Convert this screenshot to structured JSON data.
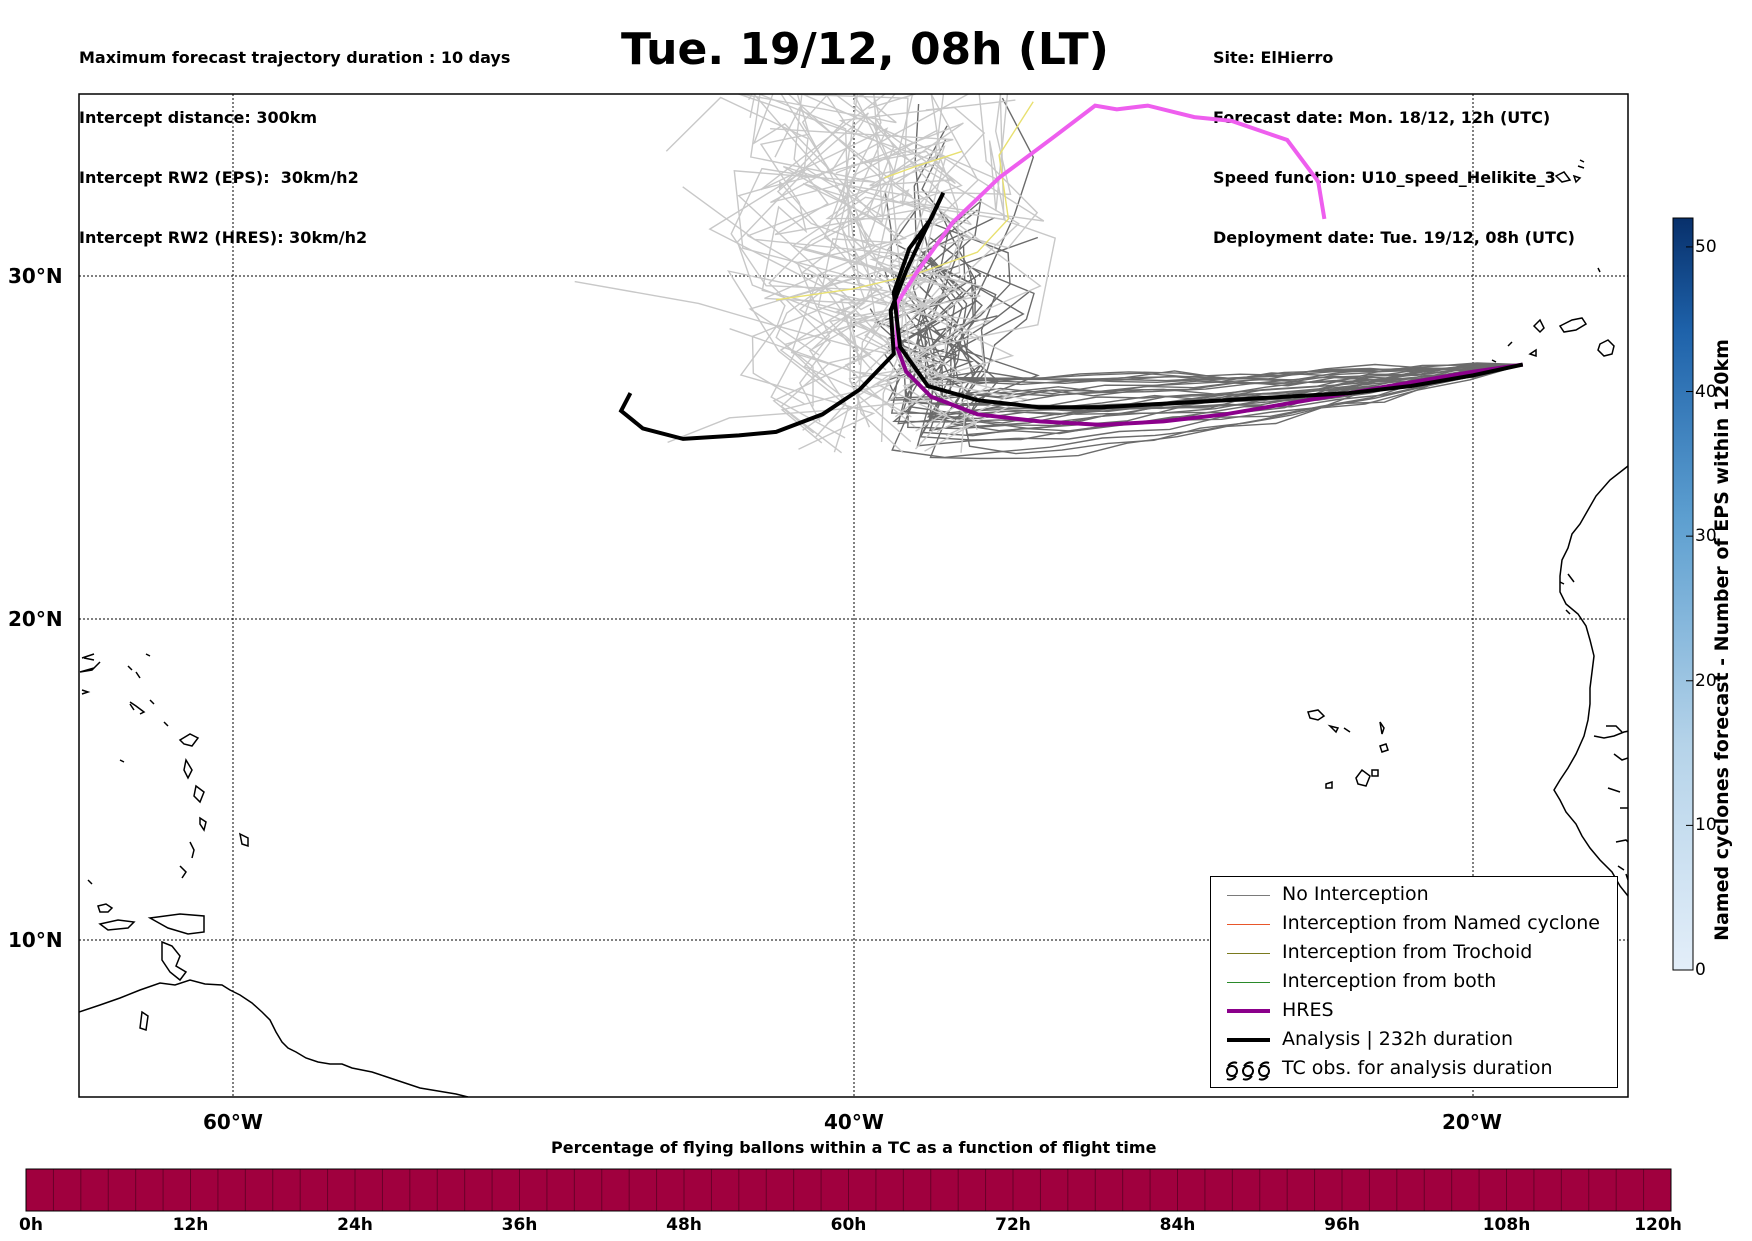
{
  "header": {
    "left_lines": [
      "Maximum forecast trajectory duration : 10 days",
      "Intercept distance: 300km",
      "Intercept RW2 (EPS):  30km/h2",
      "Intercept RW2 (HRES): 30km/h2"
    ],
    "title": "Tue. 19/12, 08h (LT)",
    "right_lines": [
      "Site: ElHierro",
      "Forecast date: Mon. 18/12, 12h (UTC)",
      "Speed function: U10_speed_Helikite_3",
      "Deployment date: Tue. 19/12, 08h (UTC)"
    ]
  },
  "map": {
    "lat_labels": [
      "30°N",
      "20°N",
      "10°N"
    ],
    "lon_labels": [
      "60°W",
      "40°W",
      "20°W"
    ],
    "lon_range": [
      -65,
      -15
    ],
    "lat_range": [
      5.5,
      34.8
    ],
    "gridline_lats": [
      30,
      20,
      10
    ],
    "gridline_lons": [
      -60,
      -40,
      -20
    ]
  },
  "legend": {
    "items": [
      {
        "label": "No Interception",
        "color": "#7a7a7a",
        "kind": "thin"
      },
      {
        "label": "Interception from Named cyclone",
        "color": "#e8562a",
        "kind": "thin"
      },
      {
        "label": "Interception from Trochoid",
        "color": "#7a7a1e",
        "kind": "thin"
      },
      {
        "label": "Interception from both",
        "color": "#2a8a2a",
        "kind": "thin"
      },
      {
        "label": "HRES",
        "color": "#8b008b",
        "kind": "thick"
      },
      {
        "label": "Analysis | 232h duration",
        "color": "#000000",
        "kind": "thick"
      },
      {
        "label": "TC obs. for analysis duration",
        "color": "#000000",
        "kind": "symbol"
      }
    ]
  },
  "colorbar": {
    "title": "Named cyclones forecast - Number of EPS within 120km",
    "ticks": [
      "0",
      "10",
      "20",
      "30",
      "40",
      "50"
    ],
    "max": 52,
    "colors": [
      "#e3eef9",
      "#08306b"
    ]
  },
  "timebar": {
    "title": "Percentage of flying ballons within a TC as a function of flight time",
    "ticks": [
      "0h",
      "12h",
      "24h",
      "36h",
      "48h",
      "60h",
      "72h",
      "84h",
      "96h",
      "108h",
      "120h"
    ],
    "color": "#a0003e"
  },
  "tracks": {
    "hres": {
      "color": "#8b008b",
      "points": [
        [
          -18.4,
          27.5
        ],
        [
          -20,
          27.3
        ],
        [
          -22,
          27
        ],
        [
          -24,
          26.7
        ],
        [
          -26,
          26.4
        ],
        [
          -28,
          26.1
        ],
        [
          -30,
          25.9
        ],
        [
          -32,
          25.8
        ],
        [
          -34,
          25.9
        ],
        [
          -36,
          26.1
        ],
        [
          -37.5,
          26.6
        ],
        [
          -38.3,
          27.3
        ],
        [
          -38.6,
          28
        ]
      ]
    },
    "hres_magenta": {
      "color": "#ee5eee",
      "points": [
        [
          -38.6,
          28
        ],
        [
          -38.6,
          29.2
        ],
        [
          -38,
          30
        ],
        [
          -36.8,
          31.4
        ],
        [
          -35.3,
          32.6
        ],
        [
          -33.5,
          33.7
        ],
        [
          -32.2,
          34.5
        ],
        [
          -31.5,
          34.4
        ],
        [
          -30.5,
          34.5
        ],
        [
          -29,
          34.2
        ],
        [
          -27.8,
          34.1
        ],
        [
          -26,
          33.6
        ],
        [
          -25,
          32.5
        ],
        [
          -24.8,
          31.5
        ]
      ]
    },
    "analysis": {
      "color": "#000000",
      "points": [
        [
          -47.2,
          26.7
        ],
        [
          -47.5,
          26.2
        ],
        [
          -46.8,
          25.7
        ],
        [
          -45.5,
          25.4
        ],
        [
          -43.7,
          25.5
        ],
        [
          -42.5,
          25.6
        ],
        [
          -41,
          26.1
        ],
        [
          -39.8,
          26.8
        ],
        [
          -38.7,
          27.8
        ],
        [
          -38.8,
          29
        ],
        [
          -38.3,
          30.1
        ],
        [
          -37.8,
          31
        ],
        [
          -37.1,
          32.2
        ],
        [
          -37.5,
          31.5
        ],
        [
          -38.2,
          30.7
        ],
        [
          -38.7,
          29.5
        ],
        [
          -38.5,
          28
        ],
        [
          -37.6,
          26.9
        ],
        [
          -36,
          26.5
        ],
        [
          -34,
          26.3
        ],
        [
          -32,
          26.3
        ],
        [
          -30,
          26.4
        ],
        [
          -28,
          26.5
        ],
        [
          -26,
          26.6
        ],
        [
          -24,
          26.7
        ],
        [
          -22,
          26.9
        ],
        [
          -20,
          27.2
        ],
        [
          -18.4,
          27.5
        ]
      ]
    }
  }
}
